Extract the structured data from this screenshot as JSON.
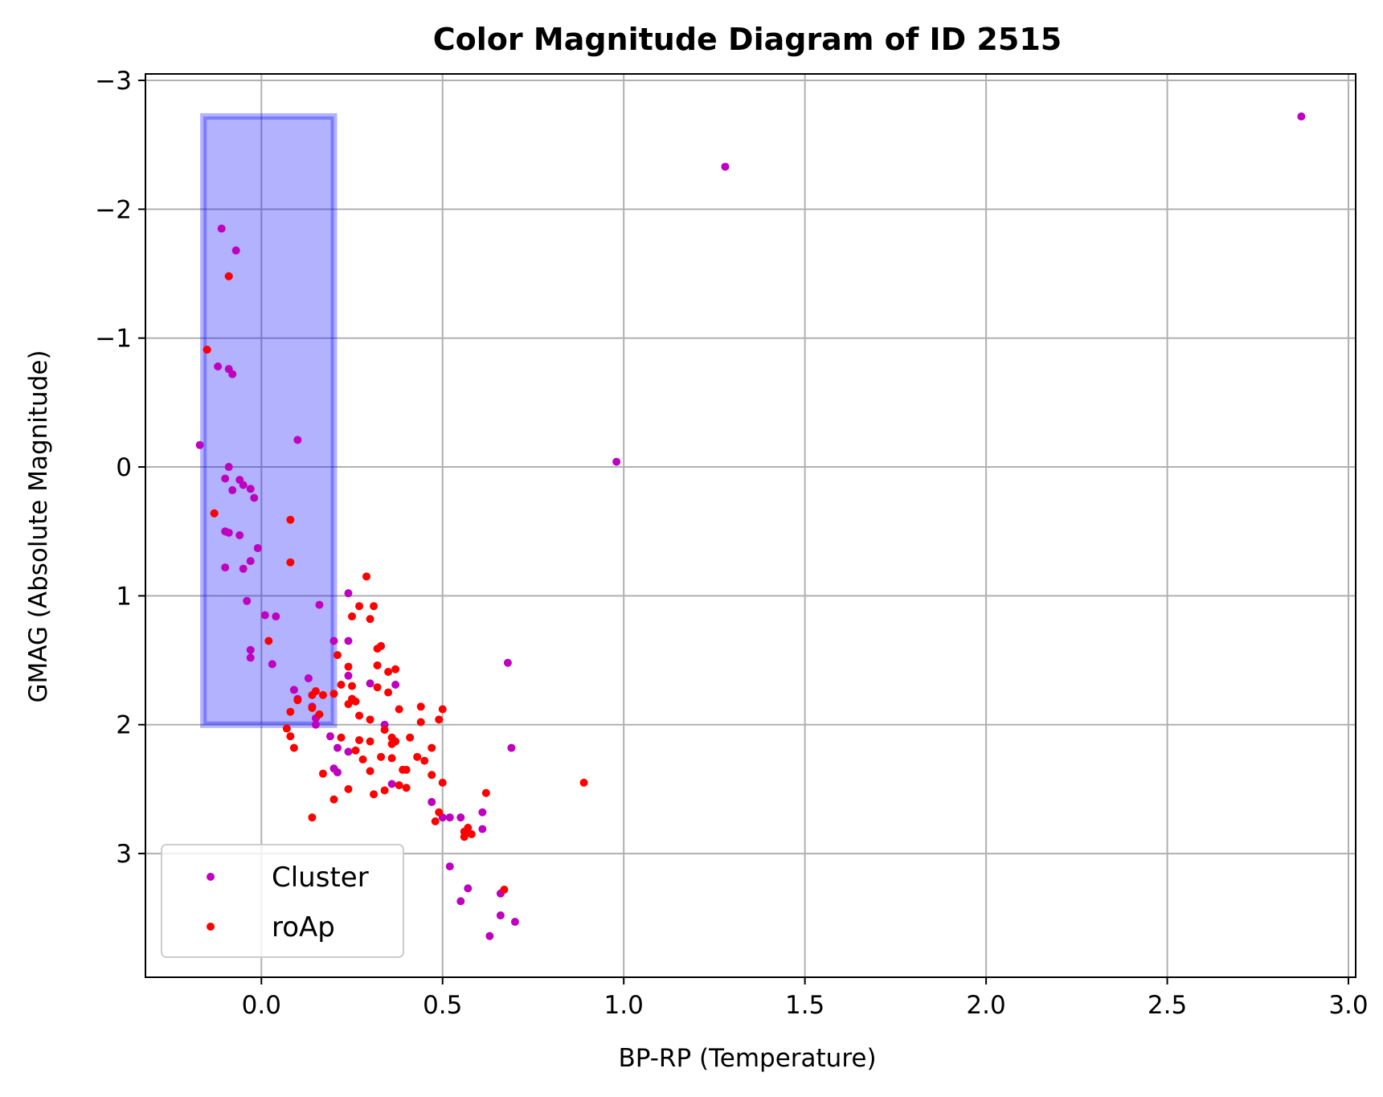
{
  "chart_data": {
    "type": "scatter",
    "title": "Color Magnitude Diagram of ID 2515",
    "xlabel": "BP-RP (Temperature)",
    "ylabel": "GMAG (Absolute Magnitude)",
    "xlim": [
      -0.32,
      3.02
    ],
    "ylim": [
      3.96,
      -3.05
    ],
    "y_inverted": true,
    "grid": true,
    "legend_position": "lower-left",
    "x_ticks": [
      0.0,
      0.5,
      1.0,
      1.5,
      2.0,
      2.5,
      3.0
    ],
    "x_tick_labels": [
      "0.0",
      "0.5",
      "1.0",
      "1.5",
      "2.0",
      "2.5",
      "3.0"
    ],
    "y_ticks": [
      -3,
      -2,
      -1,
      0,
      1,
      2,
      3
    ],
    "y_tick_labels": [
      "−3",
      "−2",
      "−1",
      "0",
      "1",
      "2",
      "3"
    ],
    "region": {
      "x_range": [
        -0.16,
        0.2
      ],
      "y_range": [
        -2.72,
        2.0
      ],
      "color": "#0000ff"
    },
    "series": [
      {
        "name": "Cluster",
        "color": "#bf00bf",
        "points": [
          [
            2.87,
            -2.72
          ],
          [
            1.28,
            -2.33
          ],
          [
            0.98,
            -0.04
          ],
          [
            -0.11,
            -1.85
          ],
          [
            -0.07,
            -1.68
          ],
          [
            -0.09,
            -1.48
          ],
          [
            -0.15,
            -0.91
          ],
          [
            -0.12,
            -0.78
          ],
          [
            -0.09,
            -0.76
          ],
          [
            -0.08,
            -0.72
          ],
          [
            -0.17,
            -0.17
          ],
          [
            0.1,
            -0.21
          ],
          [
            -0.09,
            0.0
          ],
          [
            -0.1,
            0.09
          ],
          [
            -0.06,
            0.1
          ],
          [
            -0.08,
            0.18
          ],
          [
            -0.05,
            0.14
          ],
          [
            -0.03,
            0.17
          ],
          [
            -0.02,
            0.24
          ],
          [
            -0.13,
            0.36
          ],
          [
            -0.1,
            0.5
          ],
          [
            -0.09,
            0.51
          ],
          [
            -0.06,
            0.53
          ],
          [
            -0.01,
            0.63
          ],
          [
            -0.03,
            0.73
          ],
          [
            -0.1,
            0.78
          ],
          [
            -0.05,
            0.79
          ],
          [
            -0.04,
            1.04
          ],
          [
            0.01,
            1.15
          ],
          [
            0.04,
            1.16
          ],
          [
            0.16,
            1.07
          ],
          [
            -0.03,
            1.42
          ],
          [
            -0.03,
            1.48
          ],
          [
            0.03,
            1.53
          ],
          [
            0.13,
            1.64
          ],
          [
            0.09,
            1.73
          ],
          [
            0.1,
            1.8
          ],
          [
            0.14,
            1.86
          ],
          [
            0.15,
            1.95
          ],
          [
            0.15,
            2.0
          ],
          [
            0.2,
            1.35
          ],
          [
            0.24,
            0.98
          ],
          [
            0.24,
            1.35
          ],
          [
            0.24,
            1.62
          ],
          [
            0.3,
            1.68
          ],
          [
            0.37,
            1.69
          ],
          [
            0.19,
            2.09
          ],
          [
            0.21,
            2.18
          ],
          [
            0.24,
            2.21
          ],
          [
            0.2,
            2.34
          ],
          [
            0.21,
            2.37
          ],
          [
            0.34,
            2.0
          ],
          [
            0.36,
            2.46
          ],
          [
            0.47,
            2.6
          ],
          [
            0.5,
            2.72
          ],
          [
            0.52,
            2.72
          ],
          [
            0.55,
            2.72
          ],
          [
            0.61,
            2.68
          ],
          [
            0.61,
            2.81
          ],
          [
            0.52,
            3.1
          ],
          [
            0.57,
            3.27
          ],
          [
            0.55,
            3.37
          ],
          [
            0.66,
            3.31
          ],
          [
            0.66,
            3.48
          ],
          [
            0.7,
            3.53
          ],
          [
            0.63,
            3.64
          ],
          [
            0.68,
            1.52
          ],
          [
            0.69,
            2.18
          ]
        ]
      },
      {
        "name": "roAp",
        "color": "#ff0000",
        "points": [
          [
            -0.09,
            -1.48
          ],
          [
            -0.15,
            -0.91
          ],
          [
            -0.13,
            0.36
          ],
          [
            0.08,
            0.41
          ],
          [
            0.08,
            0.74
          ],
          [
            0.02,
            1.35
          ],
          [
            0.07,
            2.03
          ],
          [
            0.08,
            2.09
          ],
          [
            0.09,
            2.18
          ],
          [
            0.08,
            1.9
          ],
          [
            0.1,
            1.81
          ],
          [
            0.14,
            1.77
          ],
          [
            0.14,
            1.87
          ],
          [
            0.15,
            1.74
          ],
          [
            0.16,
            1.92
          ],
          [
            0.17,
            1.77
          ],
          [
            0.14,
            2.72
          ],
          [
            0.17,
            2.38
          ],
          [
            0.2,
            2.58
          ],
          [
            0.2,
            1.76
          ],
          [
            0.21,
            1.46
          ],
          [
            0.22,
            1.69
          ],
          [
            0.22,
            2.1
          ],
          [
            0.24,
            1.55
          ],
          [
            0.24,
            1.84
          ],
          [
            0.24,
            2.5
          ],
          [
            0.25,
            1.16
          ],
          [
            0.25,
            1.7
          ],
          [
            0.25,
            1.8
          ],
          [
            0.26,
            1.82
          ],
          [
            0.26,
            2.2
          ],
          [
            0.27,
            1.08
          ],
          [
            0.27,
            1.93
          ],
          [
            0.27,
            2.12
          ],
          [
            0.28,
            2.27
          ],
          [
            0.29,
            0.85
          ],
          [
            0.3,
            1.18
          ],
          [
            0.3,
            1.96
          ],
          [
            0.3,
            2.36
          ],
          [
            0.3,
            2.13
          ],
          [
            0.31,
            1.08
          ],
          [
            0.31,
            2.54
          ],
          [
            0.32,
            1.41
          ],
          [
            0.32,
            1.54
          ],
          [
            0.32,
            1.71
          ],
          [
            0.33,
            1.39
          ],
          [
            0.33,
            2.25
          ],
          [
            0.34,
            2.04
          ],
          [
            0.34,
            2.51
          ],
          [
            0.35,
            1.59
          ],
          [
            0.35,
            1.75
          ],
          [
            0.36,
            2.1
          ],
          [
            0.36,
            2.15
          ],
          [
            0.36,
            2.26
          ],
          [
            0.37,
            1.57
          ],
          [
            0.37,
            2.13
          ],
          [
            0.38,
            1.88
          ],
          [
            0.38,
            2.47
          ],
          [
            0.39,
            2.35
          ],
          [
            0.4,
            2.35
          ],
          [
            0.4,
            2.49
          ],
          [
            0.41,
            2.1
          ],
          [
            0.43,
            2.25
          ],
          [
            0.44,
            1.98
          ],
          [
            0.44,
            1.86
          ],
          [
            0.45,
            2.28
          ],
          [
            0.47,
            2.18
          ],
          [
            0.47,
            2.39
          ],
          [
            0.48,
            2.75
          ],
          [
            0.49,
            1.96
          ],
          [
            0.49,
            2.68
          ],
          [
            0.5,
            1.88
          ],
          [
            0.5,
            2.45
          ],
          [
            0.56,
            2.83
          ],
          [
            0.56,
            2.87
          ],
          [
            0.57,
            2.8
          ],
          [
            0.58,
            2.85
          ],
          [
            0.62,
            2.53
          ],
          [
            0.67,
            3.28
          ],
          [
            0.89,
            2.45
          ]
        ]
      }
    ]
  }
}
